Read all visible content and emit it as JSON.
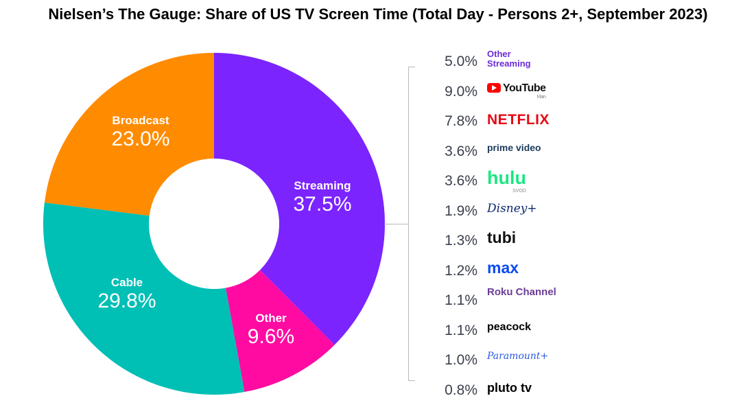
{
  "title": "Nielsen’s The Gauge: Share of US TV Screen Time (Total Day - Persons 2+, September 2023)",
  "chart_data": {
    "type": "pie",
    "title": "Nielsen’s The Gauge: Share of US TV Screen Time (Total Day - Persons 2+, September 2023)",
    "donut": true,
    "segments": [
      {
        "name": "Streaming",
        "value": 37.5,
        "label": "37.5%",
        "color": "#7b24fe"
      },
      {
        "name": "Other",
        "value": 9.6,
        "label": "9.6%",
        "color": "#ff0ba2"
      },
      {
        "name": "Cable",
        "value": 29.8,
        "label": "29.8%",
        "color": "#00bfb5"
      },
      {
        "name": "Broadcast",
        "value": 23.0,
        "label": "23.0%",
        "color": "#ff8b00"
      }
    ],
    "streaming_breakdown": [
      {
        "name": "Other Streaming",
        "value": 5.0,
        "label": "5.0%"
      },
      {
        "name": "YouTube",
        "sub": "Main",
        "value": 9.0,
        "label": "9.0%"
      },
      {
        "name": "NETFLIX",
        "value": 7.8,
        "label": "7.8%"
      },
      {
        "name": "prime video",
        "value": 3.6,
        "label": "3.6%"
      },
      {
        "name": "hulu",
        "sub": "SVOD",
        "value": 3.6,
        "label": "3.6%"
      },
      {
        "name": "Disney+",
        "value": 1.9,
        "label": "1.9%"
      },
      {
        "name": "tubi",
        "value": 1.3,
        "label": "1.3%"
      },
      {
        "name": "max",
        "value": 1.2,
        "label": "1.2%"
      },
      {
        "name": "Roku Channel",
        "value": 1.1,
        "label": "1.1%"
      },
      {
        "name": "peacock",
        "value": 1.1,
        "label": "1.1%"
      },
      {
        "name": "Paramount+",
        "value": 1.0,
        "label": "1.0%"
      },
      {
        "name": "pluto tv",
        "value": 0.8,
        "label": "0.8%"
      }
    ]
  }
}
